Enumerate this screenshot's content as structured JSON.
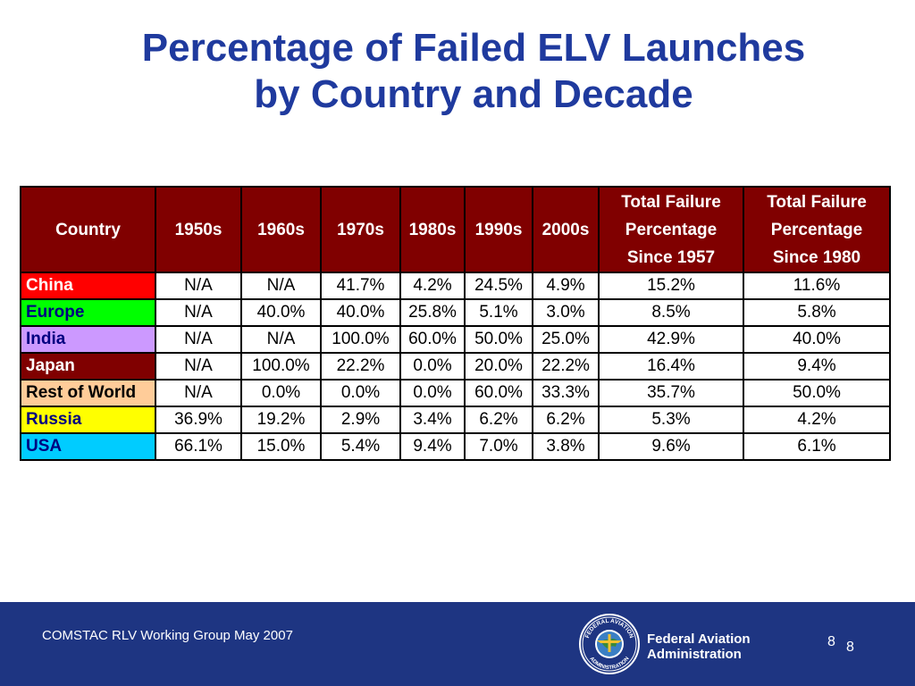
{
  "slide": {
    "title_line1": "Percentage of Failed ELV Launches",
    "title_line2": "by Country and Decade"
  },
  "table": {
    "headers": [
      [
        "Country"
      ],
      [
        "1950s"
      ],
      [
        "1960s"
      ],
      [
        "1970s"
      ],
      [
        "1980s"
      ],
      [
        "1990s"
      ],
      [
        "2000s"
      ],
      [
        "Total Failure",
        "Percentage",
        "Since 1957"
      ],
      [
        "Total Failure",
        "Percentage",
        "Since 1980"
      ]
    ],
    "rows": [
      {
        "country": "China",
        "color": "#ff0000",
        "text_color": "#ffffff",
        "values": [
          "N/A",
          "N/A",
          "41.7%",
          "4.2%",
          "24.5%",
          "4.9%",
          "15.2%",
          "11.6%"
        ]
      },
      {
        "country": "Europe",
        "color": "#00ff00",
        "text_color": "#000080",
        "values": [
          "N/A",
          "40.0%",
          "40.0%",
          "25.8%",
          "5.1%",
          "3.0%",
          "8.5%",
          "5.8%"
        ]
      },
      {
        "country": "India",
        "color": "#cc99ff",
        "text_color": "#000080",
        "values": [
          "N/A",
          "N/A",
          "100.0%",
          "60.0%",
          "50.0%",
          "25.0%",
          "42.9%",
          "40.0%"
        ]
      },
      {
        "country": "Japan",
        "color": "#800000",
        "text_color": "#ffffff",
        "values": [
          "N/A",
          "100.0%",
          "22.2%",
          "0.0%",
          "20.0%",
          "22.2%",
          "16.4%",
          "9.4%"
        ]
      },
      {
        "country": "Rest of World",
        "color": "#ffcc99",
        "text_color": "#000000",
        "values": [
          "N/A",
          "0.0%",
          "0.0%",
          "0.0%",
          "60.0%",
          "33.3%",
          "35.7%",
          "50.0%"
        ]
      },
      {
        "country": "Russia",
        "color": "#ffff00",
        "text_color": "#000080",
        "values": [
          "36.9%",
          "19.2%",
          "2.9%",
          "3.4%",
          "6.2%",
          "6.2%",
          "5.3%",
          "4.2%"
        ]
      },
      {
        "country": "USA",
        "color": "#00ccff",
        "text_color": "#000080",
        "values": [
          "66.1%",
          "15.0%",
          "5.4%",
          "9.4%",
          "7.0%",
          "3.8%",
          "9.6%",
          "6.1%"
        ]
      }
    ]
  },
  "footer": {
    "left_text": "COMSTAC RLV Working Group  May 2007",
    "org_line1": "Federal Aviation",
    "org_line2": "Administration",
    "seal_icon": "faa-seal-icon",
    "seal_text_top": "FEDERAL AVIATION",
    "seal_text_bottom": "ADMINISTRATION",
    "page_number": "8",
    "page_number_2": "8",
    "background_color": "#1e3582"
  }
}
